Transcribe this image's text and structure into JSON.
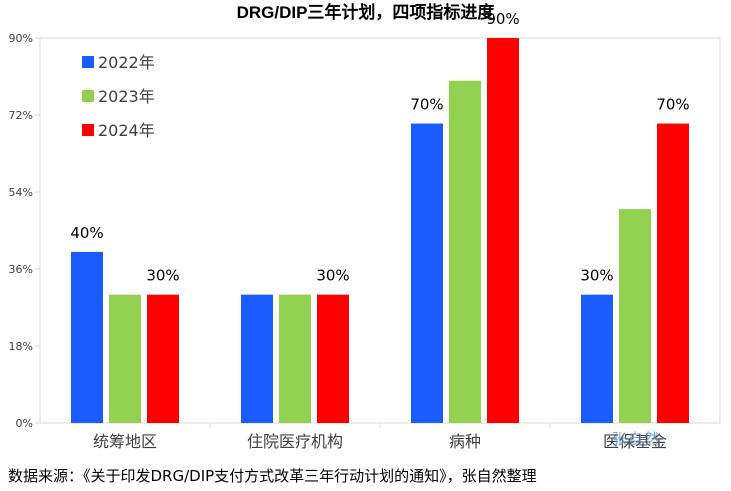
{
  "title": "DRG/DIP三年计划，四项指标进度",
  "source_note": "数据来源：《关于印发DRG/DIP支付方式改革三年行动计划的通知》，张自然整理",
  "watermark": "张自然",
  "colors": {
    "s2022": "#1a5cff",
    "s2023": "#92d050",
    "s2024": "#ff0000",
    "axis": "#d9d9d9",
    "text": "#404040"
  },
  "chart_data": {
    "type": "bar",
    "title": "DRG/DIP三年计划，四项指标进度",
    "categories": [
      "统筹地区",
      "住院医疗机构",
      "病种",
      "医保基金"
    ],
    "series": [
      {
        "name": "2022年",
        "values": [
          40,
          30,
          70,
          30
        ],
        "labels": [
          "40%",
          "",
          "70%",
          "30%"
        ]
      },
      {
        "name": "2023年",
        "values": [
          30,
          30,
          80,
          50
        ],
        "labels": [
          "",
          "",
          "",
          ""
        ]
      },
      {
        "name": "2024年",
        "values": [
          30,
          30,
          90,
          70
        ],
        "labels": [
          "30%",
          "30%",
          "90%",
          "70%"
        ]
      }
    ],
    "ylim": [
      0,
      90
    ],
    "yticks": [
      0,
      18,
      36,
      54,
      72,
      90
    ],
    "ytick_labels": [
      "0%",
      "18%",
      "36%",
      "54%",
      "72%",
      "90%"
    ],
    "legend_position": "top-left",
    "grid": false,
    "xlabel": "",
    "ylabel": ""
  }
}
